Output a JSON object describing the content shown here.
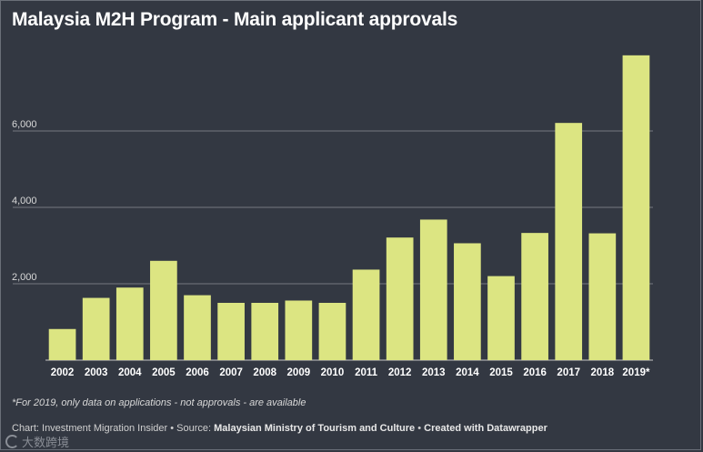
{
  "title": "Malaysia M2H Program - Main applicant approvals",
  "note": "*For 2019, only data on applications - not approvals - are available",
  "credit": {
    "prefix": "Chart: Investment Migration Insider • Source: ",
    "source": "Malaysian Ministry of Tourism and Culture",
    "sep": " • ",
    "tool": "Created with Datawrapper"
  },
  "watermark": "大数跨境",
  "colors": {
    "bar": "#dce582",
    "background": "#333842",
    "grid": "#8b8f96",
    "text": "#ffffff"
  },
  "chart_data": {
    "type": "bar",
    "title": "Malaysia M2H Program - Main applicant approvals",
    "xlabel": "",
    "ylabel": "",
    "categories": [
      "2002",
      "2003",
      "2004",
      "2005",
      "2006",
      "2007",
      "2008",
      "2009",
      "2010",
      "2011",
      "2012",
      "2013",
      "2014",
      "2015",
      "2016",
      "2017",
      "2018",
      "2019*"
    ],
    "values": [
      815,
      1630,
      1900,
      2600,
      1700,
      1500,
      1500,
      1560,
      1500,
      2370,
      3210,
      3680,
      3060,
      2200,
      3330,
      6210,
      3320,
      7980
    ],
    "yticks": [
      {
        "value": 2000,
        "label": "2,000"
      },
      {
        "value": 4000,
        "label": "4,000"
      },
      {
        "value": 6000,
        "label": "6,000"
      }
    ],
    "ylim": [
      0,
      8000
    ],
    "grid": true
  }
}
